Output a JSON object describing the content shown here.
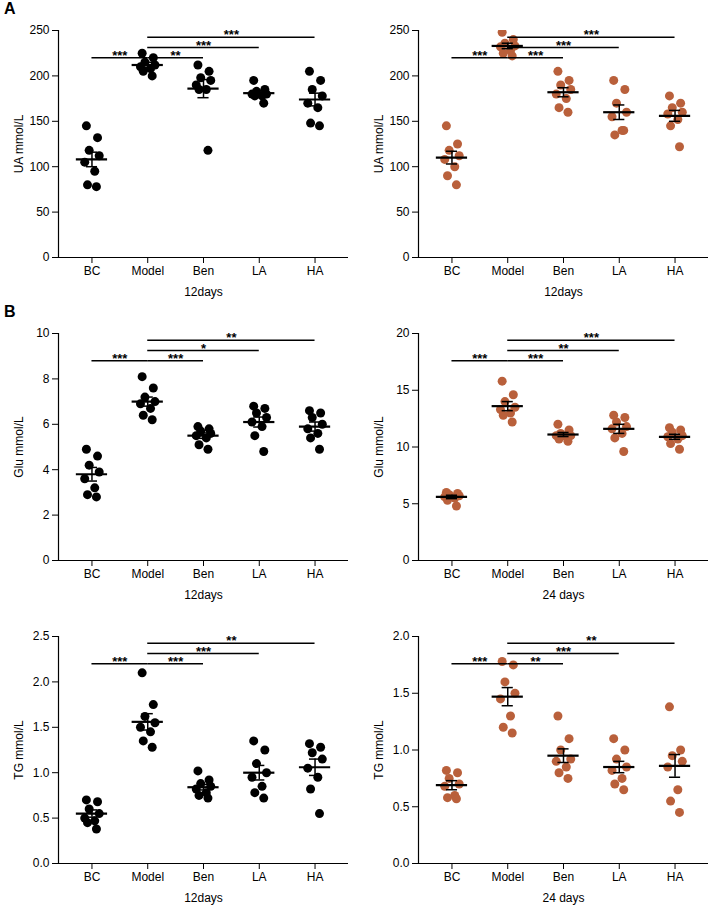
{
  "chart_data": [
    {
      "type": "scatter",
      "title": "A",
      "x_label": "12days",
      "y_label": "UA mmol/L",
      "color": "#000000",
      "categories": [
        "BC",
        "Model",
        "Ben",
        "LA",
        "HA"
      ],
      "points": [
        [
          145,
          132,
          118,
          112,
          105,
          95,
          80,
          78
        ],
        [
          225,
          220,
          215,
          212,
          210,
          208,
          205,
          200
        ],
        [
          212,
          205,
          198,
          195,
          190,
          185,
          185,
          118
        ],
        [
          195,
          185,
          183,
          180,
          180,
          178,
          178,
          170
        ],
        [
          205,
          195,
          185,
          178,
          170,
          165,
          148,
          145
        ]
      ],
      "mean": [
        108,
        212,
        186,
        181,
        174
      ],
      "sem": [
        8,
        3,
        10,
        3,
        7
      ],
      "significance": [
        {
          "from": "BC",
          "to": "Model",
          "label": "***"
        },
        {
          "from": "Model",
          "to": "Ben",
          "label": "**"
        },
        {
          "from": "Model",
          "to": "LA",
          "label": "***"
        },
        {
          "from": "Model",
          "to": "HA",
          "label": "***"
        }
      ],
      "ylim": [
        0,
        250
      ],
      "yticks": [
        0,
        50,
        100,
        150,
        200,
        250
      ]
    },
    {
      "type": "scatter",
      "x_label": "12days",
      "y_label": "UA mmol/L",
      "color": "#b9603b",
      "categories": [
        "BC",
        "Model",
        "Ben",
        "LA",
        "HA"
      ],
      "points": [
        [
          145,
          125,
          118,
          112,
          108,
          100,
          90,
          80
        ],
        [
          248,
          240,
          236,
          233,
          232,
          228,
          225,
          222
        ],
        [
          205,
          195,
          190,
          185,
          180,
          175,
          165,
          160
        ],
        [
          195,
          185,
          170,
          160,
          155,
          140,
          135,
          140
        ],
        [
          178,
          170,
          165,
          160,
          158,
          152,
          145,
          122
        ]
      ],
      "mean": [
        110,
        233,
        182,
        160,
        156
      ],
      "sem": [
        7,
        3,
        5,
        8,
        6
      ],
      "significance": [
        {
          "from": "BC",
          "to": "Model",
          "label": "***"
        },
        {
          "from": "Model",
          "to": "Ben",
          "label": "***"
        },
        {
          "from": "Model",
          "to": "LA",
          "label": "***"
        },
        {
          "from": "Model",
          "to": "HA",
          "label": "***"
        }
      ],
      "ylim": [
        0,
        250
      ],
      "yticks": [
        0,
        50,
        100,
        150,
        200,
        250
      ]
    },
    {
      "type": "scatter",
      "title": "B",
      "x_label": "12days",
      "y_label": "Glu mmol/L",
      "color": "#000000",
      "categories": [
        "BC",
        "Model",
        "Ben",
        "LA",
        "HA"
      ],
      "points": [
        [
          4.9,
          4.6,
          4.2,
          3.9,
          3.6,
          3.2,
          2.9,
          2.8
        ],
        [
          8.1,
          7.6,
          7.2,
          7.0,
          6.9,
          6.7,
          6.4,
          6.2
        ],
        [
          5.9,
          5.8,
          5.7,
          5.6,
          5.5,
          5.4,
          5.1,
          4.9
        ],
        [
          6.8,
          6.7,
          6.5,
          6.3,
          6.1,
          5.9,
          5.5,
          4.8
        ],
        [
          6.6,
          6.5,
          6.3,
          6.0,
          5.8,
          5.6,
          5.4,
          4.9
        ]
      ],
      "mean": [
        3.8,
        7.0,
        5.5,
        6.1,
        5.9
      ],
      "sem": [
        0.3,
        0.2,
        0.12,
        0.22,
        0.2
      ],
      "significance": [
        {
          "from": "BC",
          "to": "Model",
          "label": "***"
        },
        {
          "from": "Model",
          "to": "Ben",
          "label": "***"
        },
        {
          "from": "Model",
          "to": "LA",
          "label": "*"
        },
        {
          "from": "Model",
          "to": "HA",
          "label": "**"
        }
      ],
      "ylim": [
        0,
        10
      ],
      "yticks": [
        0,
        2,
        4,
        6,
        8,
        10
      ]
    },
    {
      "type": "scatter",
      "x_label": "24 days",
      "y_label": "Glu mmol/L",
      "color": "#b9603b",
      "categories": [
        "BC",
        "Model",
        "Ben",
        "LA",
        "HA"
      ],
      "points": [
        [
          6.0,
          5.9,
          5.8,
          5.7,
          5.6,
          5.5,
          5.3,
          4.8
        ],
        [
          15.8,
          14.6,
          14.0,
          13.5,
          13.3,
          13.0,
          12.8,
          12.2
        ],
        [
          12.0,
          11.5,
          11.2,
          11.0,
          11.0,
          10.9,
          10.7,
          10.5
        ],
        [
          12.8,
          12.6,
          12.2,
          11.8,
          11.6,
          11.2,
          10.8,
          9.6
        ],
        [
          11.7,
          11.5,
          11.3,
          11.0,
          10.9,
          10.7,
          10.3,
          9.8
        ]
      ],
      "mean": [
        5.6,
        13.6,
        11.1,
        11.6,
        10.9
      ],
      "sem": [
        0.15,
        0.4,
        0.18,
        0.4,
        0.22
      ],
      "significance": [
        {
          "from": "BC",
          "to": "Model",
          "label": "***"
        },
        {
          "from": "Model",
          "to": "Ben",
          "label": "***"
        },
        {
          "from": "Model",
          "to": "LA",
          "label": "**"
        },
        {
          "from": "Model",
          "to": "HA",
          "label": "***"
        }
      ],
      "ylim": [
        0,
        20
      ],
      "yticks": [
        0,
        5,
        10,
        15,
        20
      ]
    },
    {
      "type": "scatter",
      "x_label": "12days",
      "y_label": "TG mmol/L",
      "color": "#000000",
      "categories": [
        "BC",
        "Model",
        "Ben",
        "LA",
        "HA"
      ],
      "points": [
        [
          0.7,
          0.68,
          0.6,
          0.55,
          0.5,
          0.47,
          0.45,
          0.38
        ],
        [
          2.1,
          1.75,
          1.62,
          1.55,
          1.5,
          1.45,
          1.35,
          1.28
        ],
        [
          1.02,
          0.92,
          0.88,
          0.85,
          0.82,
          0.78,
          0.75,
          0.72
        ],
        [
          1.35,
          1.25,
          1.1,
          1.0,
          0.95,
          0.85,
          0.78,
          0.72
        ],
        [
          1.32,
          1.28,
          1.22,
          1.15,
          1.05,
          0.95,
          0.82,
          0.55
        ]
      ],
      "mean": [
        0.55,
        1.56,
        0.84,
        1.0,
        1.06
      ],
      "sem": [
        0.04,
        0.09,
        0.03,
        0.08,
        0.09
      ],
      "significance": [
        {
          "from": "BC",
          "to": "Model",
          "label": "***"
        },
        {
          "from": "Model",
          "to": "Ben",
          "label": "***"
        },
        {
          "from": "Model",
          "to": "LA",
          "label": "***"
        },
        {
          "from": "Model",
          "to": "HA",
          "label": "**"
        }
      ],
      "ylim": [
        0,
        2.5
      ],
      "yticks": [
        {
          "value": 0,
          "label": "0.0"
        },
        0.5,
        {
          "value": 1,
          "label": "1.0"
        },
        1.5,
        {
          "value": 2,
          "label": "2.0"
        },
        2.5
      ]
    },
    {
      "type": "scatter",
      "x_label": "24 days",
      "y_label": "TG mmol/L",
      "color": "#b9603b",
      "categories": [
        "BC",
        "Model",
        "Ben",
        "LA",
        "HA"
      ],
      "points": [
        [
          0.82,
          0.8,
          0.75,
          0.7,
          0.68,
          0.6,
          0.58,
          0.57
        ],
        [
          1.78,
          1.75,
          1.6,
          1.5,
          1.45,
          1.3,
          1.2,
          1.15
        ],
        [
          1.3,
          1.1,
          1.0,
          0.92,
          0.9,
          0.85,
          0.8,
          0.75
        ],
        [
          1.1,
          1.0,
          0.92,
          0.85,
          0.82,
          0.75,
          0.7,
          0.65
        ],
        [
          1.38,
          1.0,
          0.95,
          0.9,
          0.85,
          0.65,
          0.55,
          0.45
        ]
      ],
      "mean": [
        0.69,
        1.47,
        0.95,
        0.85,
        0.86
      ],
      "sem": [
        0.04,
        0.08,
        0.06,
        0.05,
        0.1
      ],
      "significance": [
        {
          "from": "BC",
          "to": "Model",
          "label": "***"
        },
        {
          "from": "Model",
          "to": "Ben",
          "label": "**"
        },
        {
          "from": "Model",
          "to": "LA",
          "label": "***"
        },
        {
          "from": "Model",
          "to": "HA",
          "label": "**"
        }
      ],
      "ylim": [
        0,
        2.0
      ],
      "yticks": [
        {
          "value": 0,
          "label": "0.0"
        },
        0.5,
        {
          "value": 1,
          "label": "1.0"
        },
        1.5,
        {
          "value": 2,
          "label": "2.0"
        }
      ]
    }
  ]
}
